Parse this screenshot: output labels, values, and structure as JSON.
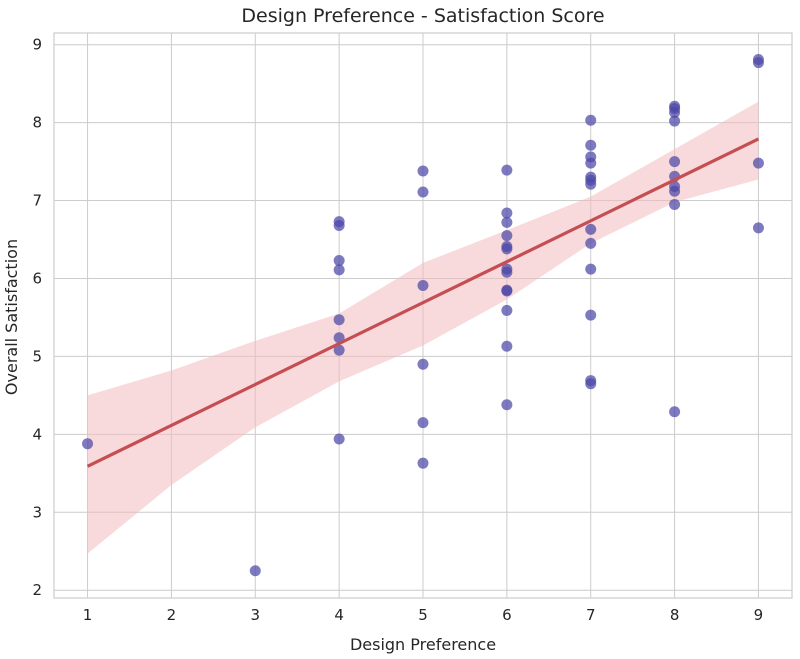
{
  "chart_data": {
    "type": "scatter",
    "title": "Design Preference - Satisfaction Score",
    "xlabel": "Design Preference",
    "ylabel": "Overall Satisfaction",
    "xlim": [
      0.6,
      9.4
    ],
    "ylim": [
      1.9,
      9.15
    ],
    "xticks": [
      1,
      2,
      3,
      4,
      5,
      6,
      7,
      8,
      9
    ],
    "yticks": [
      2,
      3,
      4,
      5,
      6,
      7,
      8,
      9
    ],
    "grid": true,
    "points": [
      {
        "x": 1,
        "y": 3.88
      },
      {
        "x": 3,
        "y": 2.25
      },
      {
        "x": 4,
        "y": 6.73
      },
      {
        "x": 4,
        "y": 6.68
      },
      {
        "x": 4,
        "y": 6.23
      },
      {
        "x": 4,
        "y": 6.11
      },
      {
        "x": 4,
        "y": 5.47
      },
      {
        "x": 4,
        "y": 5.24
      },
      {
        "x": 4,
        "y": 5.08
      },
      {
        "x": 4,
        "y": 3.94
      },
      {
        "x": 5,
        "y": 7.38
      },
      {
        "x": 5,
        "y": 7.11
      },
      {
        "x": 5,
        "y": 5.91
      },
      {
        "x": 5,
        "y": 4.9
      },
      {
        "x": 5,
        "y": 4.15
      },
      {
        "x": 5,
        "y": 3.63
      },
      {
        "x": 6,
        "y": 7.39
      },
      {
        "x": 6,
        "y": 6.84
      },
      {
        "x": 6,
        "y": 6.72
      },
      {
        "x": 6,
        "y": 6.55
      },
      {
        "x": 6,
        "y": 6.41
      },
      {
        "x": 6,
        "y": 6.38
      },
      {
        "x": 6,
        "y": 6.12
      },
      {
        "x": 6,
        "y": 6.08
      },
      {
        "x": 6,
        "y": 5.85
      },
      {
        "x": 6,
        "y": 5.84
      },
      {
        "x": 6,
        "y": 5.59
      },
      {
        "x": 6,
        "y": 5.13
      },
      {
        "x": 6,
        "y": 4.38
      },
      {
        "x": 7,
        "y": 8.03
      },
      {
        "x": 7,
        "y": 7.71
      },
      {
        "x": 7,
        "y": 7.56
      },
      {
        "x": 7,
        "y": 7.48
      },
      {
        "x": 7,
        "y": 7.3
      },
      {
        "x": 7,
        "y": 7.26
      },
      {
        "x": 7,
        "y": 7.21
      },
      {
        "x": 7,
        "y": 6.63
      },
      {
        "x": 7,
        "y": 6.45
      },
      {
        "x": 7,
        "y": 6.12
      },
      {
        "x": 7,
        "y": 5.53
      },
      {
        "x": 7,
        "y": 4.69
      },
      {
        "x": 7,
        "y": 4.65
      },
      {
        "x": 8,
        "y": 8.21
      },
      {
        "x": 8,
        "y": 8.18
      },
      {
        "x": 8,
        "y": 8.13
      },
      {
        "x": 8,
        "y": 8.02
      },
      {
        "x": 8,
        "y": 7.5
      },
      {
        "x": 8,
        "y": 7.31
      },
      {
        "x": 8,
        "y": 7.18
      },
      {
        "x": 8,
        "y": 7.12
      },
      {
        "x": 8,
        "y": 6.95
      },
      {
        "x": 8,
        "y": 4.29
      },
      {
        "x": 9,
        "y": 8.81
      },
      {
        "x": 9,
        "y": 8.77
      },
      {
        "x": 9,
        "y": 7.48
      },
      {
        "x": 9,
        "y": 6.65
      }
    ],
    "regression": {
      "x": [
        1,
        9
      ],
      "y": [
        3.59,
        7.79
      ]
    },
    "confidence_band": {
      "x": [
        1,
        2,
        3,
        4,
        5,
        6,
        7,
        8,
        9
      ],
      "lower": [
        2.47,
        3.35,
        4.09,
        4.68,
        5.14,
        5.73,
        6.45,
        6.98,
        7.27
      ],
      "upper": [
        4.5,
        4.82,
        5.2,
        5.55,
        6.2,
        6.62,
        7.05,
        7.66,
        8.27
      ]
    },
    "colors": {
      "points": "#4c46a6",
      "line": "#c44e52",
      "band": "#f2bcbf",
      "grid": "#cccccc",
      "background": "#ffffff"
    }
  }
}
